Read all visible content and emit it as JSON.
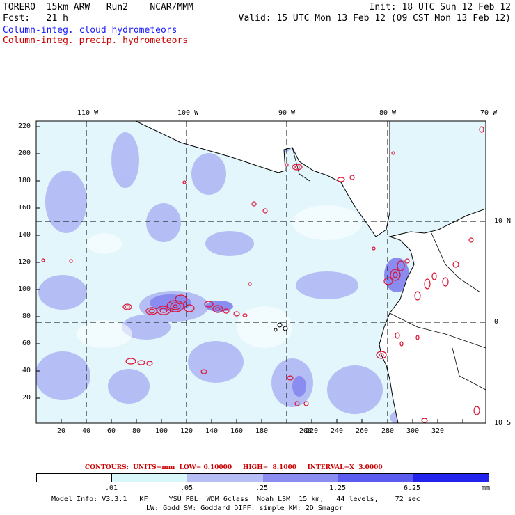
{
  "header": {
    "model": "TORERO  15km ARW   Run2    NCAR/MMM",
    "init": "Init: 18 UTC Sun 12 Feb 12",
    "fcst": "Fcst:   21 h",
    "valid": "Valid: 15 UTC Mon 13 Feb 12 (09 CST Mon 13 Feb 12)",
    "field1": "Column-integ. cloud hydrometeors",
    "field2": "Column-integ. precip. hydrometeors"
  },
  "map": {
    "lon_labels": [
      "110 W",
      "100 W",
      "90 W",
      "80 W",
      "70 W"
    ],
    "lat_labels": [
      "10 N",
      "0",
      "10 S"
    ],
    "x_ticks": [
      "20",
      "40",
      "60",
      "80",
      "100",
      "120",
      "140",
      "160",
      "180",
      "200",
      "220",
      "240",
      "260",
      "280",
      "300",
      "320"
    ],
    "y_ticks": [
      "220",
      "200",
      "180",
      "160",
      "140",
      "120",
      "100",
      "80",
      "60",
      "40",
      "20"
    ],
    "colors": {
      "land": "#ffffff",
      "grid": "#000000",
      "precip_contour": "#dd1133",
      "coast": "#000000"
    }
  },
  "contour_info": {
    "label": "CONTOURS:  UNITS=mm  LOW= 0.10000     HIGH=  8.1000     INTERVAL=X  3.0000"
  },
  "legend": {
    "levels": [
      ".01",
      ".05",
      ".25",
      "1.25",
      "6.25"
    ],
    "unit": "mm",
    "colors": [
      "#ffffff",
      "#d9f6fb",
      "#b7bdf5",
      "#8a8cf0",
      "#5a5cf0",
      "#2323ee"
    ]
  },
  "footer": {
    "line1": "Model Info: V3.3.1   KF     YSU PBL  WDM 6class  Noah LSM  15 km,   44 levels,    72 sec",
    "line2": "LW: Godd SW: Goddard DIFF: simple KM: 2D Smagor"
  }
}
